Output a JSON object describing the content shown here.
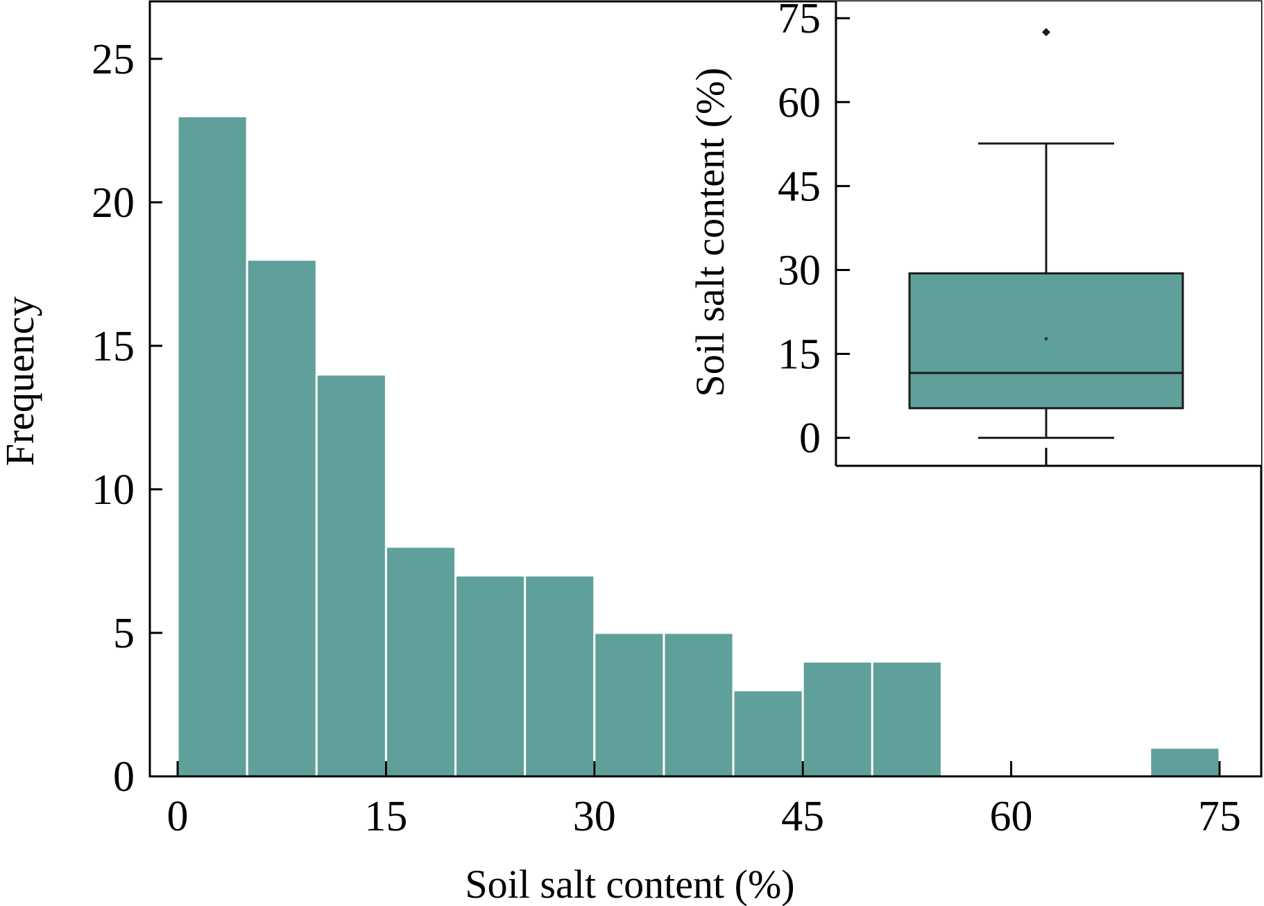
{
  "chart_data": [
    {
      "type": "bar",
      "subtype": "histogram",
      "bin_edges": [
        0,
        5,
        10,
        15,
        20,
        25,
        30,
        35,
        40,
        45,
        50,
        55,
        60,
        65,
        70,
        75
      ],
      "values": [
        23,
        18,
        14,
        8,
        7,
        7,
        5,
        5,
        3,
        4,
        4,
        0,
        0,
        0,
        1
      ],
      "xlabel": "Soil salt content (%)",
      "ylabel": "Frequency",
      "xlim": [
        -2,
        78
      ],
      "ylim": [
        0,
        27
      ],
      "xticks": [
        0,
        15,
        30,
        45,
        60,
        75
      ],
      "yticks": [
        0,
        5,
        10,
        15,
        20,
        25
      ],
      "xtick_labels": [
        "0",
        "15",
        "30",
        "45",
        "60",
        "75"
      ],
      "ytick_labels": [
        "0",
        "5",
        "10",
        "15",
        "20",
        "25"
      ],
      "grid": false,
      "bar_color": "#5FA09A"
    },
    {
      "type": "box",
      "placement": "inset top-right",
      "ylabel": "Soil salt content (%)",
      "ylim": [
        -5,
        78
      ],
      "yticks": [
        0,
        15,
        30,
        45,
        60,
        75
      ],
      "ytick_labels": [
        "0",
        "15",
        "30",
        "45",
        "60",
        "75"
      ],
      "whisker_low": 0,
      "q1": 5.3,
      "median": 11.6,
      "mean": 17.7,
      "q3": 29.4,
      "whisker_high": 52.6,
      "outliers": [
        72.5
      ],
      "box_color": "#5FA09A",
      "grid": false
    }
  ]
}
